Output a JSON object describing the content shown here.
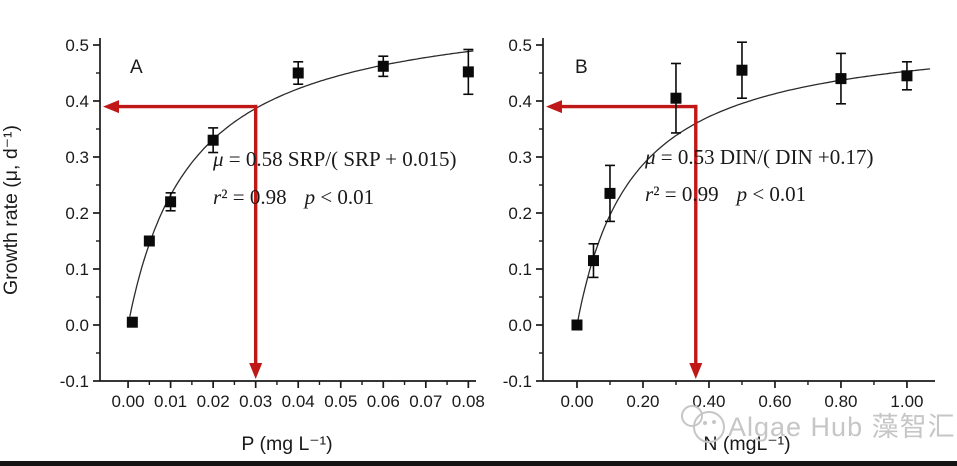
{
  "figure": {
    "y_axis_title": "Growth rate (μ, d⁻¹)"
  },
  "colors": {
    "axis": "#1a1a1a",
    "tick_text": "#1a1a1a",
    "curve": "#2b2b2b",
    "marker": "#0a0a0a",
    "arrow": "#c01717",
    "watermark": "#c6c6c6"
  },
  "watermark": {
    "text": "Algae Hub 藻智汇"
  },
  "chart_data": [
    {
      "type": "scatter",
      "panel_label": "A",
      "xlabel": "P (mg L⁻¹)",
      "ylabel": "Growth rate (μ, d⁻¹)",
      "xlim": [
        -0.0066,
        0.0818
      ],
      "ylim": [
        -0.1,
        0.5
      ],
      "x_major_ticks": [
        0.0,
        0.01,
        0.02,
        0.03,
        0.04,
        0.05,
        0.06,
        0.07,
        0.08
      ],
      "x_tick_labels": [
        "0.00",
        "0.01",
        "0.02",
        "0.03",
        "0.04",
        "0.05",
        "0.06",
        "0.07",
        "0.08"
      ],
      "x_minor_ticks": [
        0.005,
        0.015,
        0.025,
        0.035,
        0.045,
        0.055,
        0.065,
        0.075
      ],
      "y_major_ticks": [
        -0.1,
        0.0,
        0.1,
        0.2,
        0.3,
        0.4,
        0.5
      ],
      "y_tick_labels": [
        "-0.1",
        "0.0",
        "0.1",
        "0.2",
        "0.3",
        "0.4",
        "0.5"
      ],
      "y_minor_ticks": [
        -0.05,
        0.05,
        0.15,
        0.25,
        0.35,
        0.45
      ],
      "grid": false,
      "points": [
        {
          "x": 0.001,
          "y": 0.005,
          "err": 0.006
        },
        {
          "x": 0.005,
          "y": 0.15,
          "err": 0.008
        },
        {
          "x": 0.01,
          "y": 0.22,
          "err": 0.016
        },
        {
          "x": 0.02,
          "y": 0.33,
          "err": 0.022
        },
        {
          "x": 0.04,
          "y": 0.45,
          "err": 0.02
        },
        {
          "x": 0.06,
          "y": 0.462,
          "err": 0.018
        },
        {
          "x": 0.08,
          "y": 0.452,
          "err": 0.04
        }
      ],
      "fit": {
        "type": "monod",
        "mu_max": 0.58,
        "ks": 0.015,
        "x_start": 0.0004,
        "x_end": 0.0812
      },
      "equation": {
        "line1_sym": "μ",
        "line1_body": " = 0.58 SRP/( SRP + 0.015)",
        "line2_r": "r",
        "line2_r_body": "² = 0.98",
        "line2_p": "p",
        "line2_p_body": " < 0.01"
      },
      "arrow": {
        "x": 0.03,
        "y": 0.39
      }
    },
    {
      "type": "scatter",
      "panel_label": "B",
      "xlabel": "N (mgL⁻¹)",
      "ylabel": "Growth rate (μ, d⁻¹)",
      "xlim": [
        -0.103,
        1.085
      ],
      "ylim": [
        -0.1,
        0.5
      ],
      "x_major_ticks": [
        0.0,
        0.2,
        0.4,
        0.6,
        0.8,
        1.0
      ],
      "x_tick_labels": [
        "0.00",
        "0.20",
        "0.40",
        "0.60",
        "0.80",
        "1.00"
      ],
      "x_minor_ticks": [
        0.1,
        0.3,
        0.5,
        0.7,
        0.9
      ],
      "y_major_ticks": [
        -0.1,
        0.0,
        0.1,
        0.2,
        0.3,
        0.4,
        0.5
      ],
      "y_tick_labels": [
        "-0.1",
        "0.0",
        "0.1",
        "0.2",
        "0.3",
        "0.4",
        "0.5"
      ],
      "y_minor_ticks": [
        -0.05,
        0.05,
        0.15,
        0.25,
        0.35,
        0.45
      ],
      "grid": false,
      "points": [
        {
          "x": 0.0,
          "y": 0.0,
          "err": 0.005
        },
        {
          "x": 0.05,
          "y": 0.115,
          "err": 0.03
        },
        {
          "x": 0.1,
          "y": 0.235,
          "err": 0.05
        },
        {
          "x": 0.3,
          "y": 0.405,
          "err": 0.062
        },
        {
          "x": 0.5,
          "y": 0.455,
          "err": 0.05
        },
        {
          "x": 0.8,
          "y": 0.44,
          "err": 0.045
        },
        {
          "x": 1.0,
          "y": 0.445,
          "err": 0.025
        }
      ],
      "fit": {
        "type": "monod",
        "mu_max": 0.53,
        "ks": 0.17,
        "x_start": 0.0,
        "x_end": 1.07
      },
      "equation": {
        "line1_sym": "μ",
        "line1_body": " = 0.53 DIN/( DIN +0.17)",
        "line2_r": "r",
        "line2_r_body": "² = 0.99",
        "line2_p": "p",
        "line2_p_body": " < 0.01"
      },
      "arrow": {
        "x": 0.36,
        "y": 0.39
      }
    }
  ]
}
